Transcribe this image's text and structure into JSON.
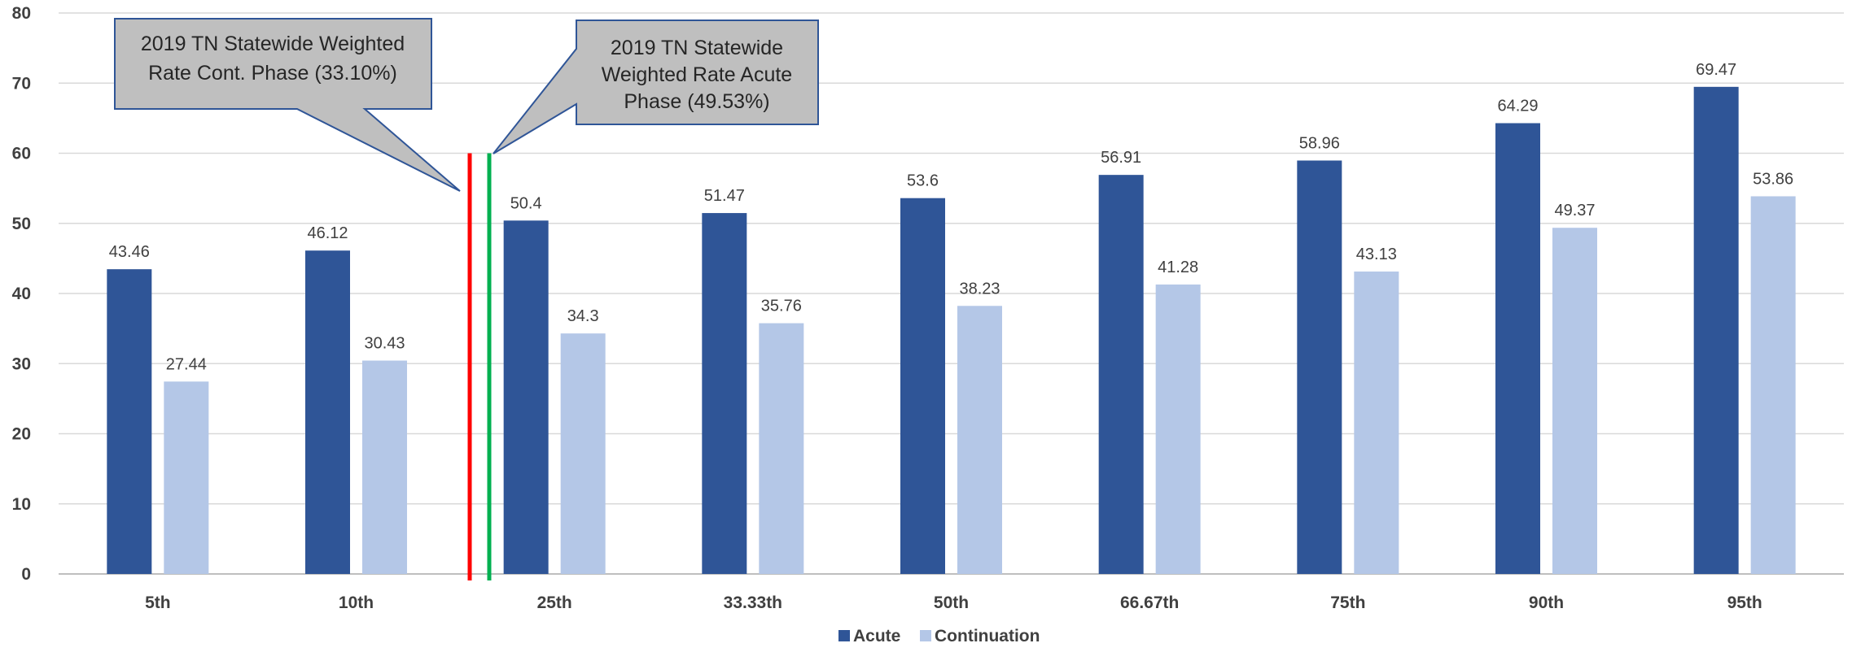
{
  "chart_data": {
    "type": "bar",
    "categories": [
      "5th",
      "10th",
      "25th",
      "33.33th",
      "50th",
      "66.67th",
      "75th",
      "90th",
      "95th"
    ],
    "series": [
      {
        "name": "Acute",
        "color": "#2F5597",
        "values": [
          43.46,
          46.12,
          50.4,
          51.47,
          53.6,
          56.91,
          58.96,
          64.29,
          69.47
        ]
      },
      {
        "name": "Continuation",
        "color": "#B4C7E7",
        "values": [
          27.44,
          30.43,
          34.3,
          35.76,
          38.23,
          41.28,
          43.13,
          49.37,
          53.86
        ]
      }
    ],
    "ylim": [
      0,
      80
    ],
    "yticks": [
      0,
      10,
      20,
      30,
      40,
      50,
      60,
      70,
      80
    ],
    "grid": true,
    "legend_position": "bottom",
    "reference_lines": [
      {
        "value": 33.1,
        "color": "#FF0000"
      },
      {
        "value": 49.53,
        "color": "#00B050"
      }
    ],
    "annotations": [
      {
        "lines": [
          "2019 TN Statewide Weighted",
          "Rate Cont. Phase (33.10%)"
        ]
      },
      {
        "lines": [
          "2019 TN Statewide",
          "Weighted Rate Acute",
          "Phase (49.53%)"
        ]
      }
    ]
  }
}
